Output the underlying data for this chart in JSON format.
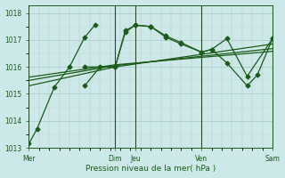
{
  "xlabel": "Pression niveau de la mer( hPa )",
  "bg_color": "#cce8e8",
  "grid_major_color": "#aacece",
  "grid_minor_color": "#bbdddd",
  "line_color": "#1a5c1a",
  "ylim": [
    1013.0,
    1018.3
  ],
  "xlim": [
    0,
    24
  ],
  "yticks": [
    1013,
    1014,
    1015,
    1016,
    1017,
    1018
  ],
  "xtick_positions": [
    0,
    8.5,
    10.5,
    17,
    24
  ],
  "xtick_labels": [
    "Mer",
    "Dim",
    "Jeu",
    "Ven",
    "Sam"
  ],
  "vlines": [
    0,
    8.5,
    10.5,
    17,
    24
  ],
  "series_with_markers": [
    {
      "x": [
        0,
        0.8,
        2.5,
        4.0,
        5.5,
        6.5
      ],
      "y": [
        1013.15,
        1013.7,
        1015.25,
        1016.0,
        1017.1,
        1017.55
      ],
      "marker": "D",
      "ms": 2.5,
      "lw": 0.9
    },
    {
      "x": [
        5.5,
        7.0,
        8.5,
        9.5,
        10.5,
        12.0,
        13.5,
        15.0,
        17.0,
        18.0,
        19.5,
        21.5,
        24.0
      ],
      "y": [
        1015.3,
        1016.0,
        1016.0,
        1017.35,
        1017.55,
        1017.5,
        1017.15,
        1016.9,
        1016.55,
        1016.65,
        1017.05,
        1015.65,
        1017.05
      ],
      "marker": "D",
      "ms": 2.5,
      "lw": 0.9
    },
    {
      "x": [
        5.5,
        8.5,
        9.5,
        10.5,
        12.0,
        13.5,
        15.0,
        17.0,
        18.0,
        19.5,
        21.5,
        22.5,
        24.0
      ],
      "y": [
        1016.0,
        1016.0,
        1017.3,
        1017.55,
        1017.5,
        1017.1,
        1016.85,
        1016.55,
        1016.65,
        1016.15,
        1015.3,
        1015.7,
        1017.05
      ],
      "marker": "D",
      "ms": 2.5,
      "lw": 0.9
    }
  ],
  "trend_lines": [
    {
      "x": [
        0,
        8.5,
        24
      ],
      "y": [
        1015.3,
        1016.0,
        1016.85
      ]
    },
    {
      "x": [
        0,
        8.5,
        24
      ],
      "y": [
        1015.5,
        1016.05,
        1016.68
      ]
    },
    {
      "x": [
        0,
        8.5,
        24
      ],
      "y": [
        1015.62,
        1016.08,
        1016.58
      ]
    }
  ]
}
